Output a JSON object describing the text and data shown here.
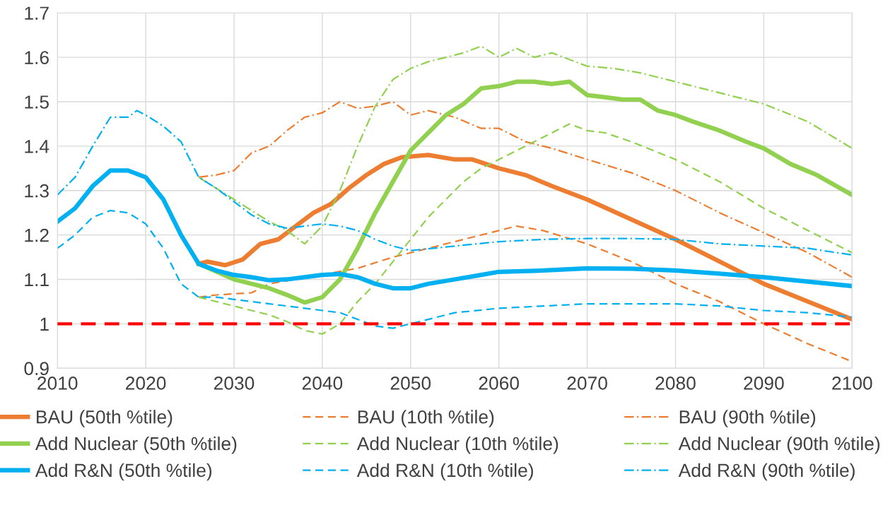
{
  "chart_data": {
    "type": "line",
    "xlim": [
      2010,
      2100
    ],
    "xticks": [
      2010,
      2020,
      2030,
      2040,
      2050,
      2060,
      2070,
      2080,
      2090,
      2100
    ],
    "ylim": [
      0.9,
      1.7
    ],
    "yticks": [
      0.9,
      1,
      1.1,
      1.2,
      1.3,
      1.4,
      1.5,
      1.6,
      1.7
    ],
    "grid": true,
    "legend": "bottom",
    "ref_lines": [
      {
        "axis": "y",
        "value": 1,
        "color": "#ff0000",
        "line_style": "dashed"
      }
    ],
    "series": [
      {
        "name": "BAU (50th %tile)",
        "color": "#ed7d31",
        "line_style": "solid",
        "x": [
          2026,
          2027,
          2029,
          2031,
          2033,
          2035,
          2037,
          2039,
          2041,
          2043,
          2045,
          2047,
          2049,
          2052,
          2055,
          2057,
          2060,
          2063,
          2066,
          2070,
          2075,
          2080,
          2085,
          2090,
          2095,
          2100
        ],
        "values": [
          1.135,
          1.14,
          1.132,
          1.145,
          1.18,
          1.19,
          1.22,
          1.25,
          1.27,
          1.305,
          1.335,
          1.36,
          1.375,
          1.38,
          1.37,
          1.37,
          1.35,
          1.335,
          1.31,
          1.28,
          1.235,
          1.19,
          1.14,
          1.09,
          1.05,
          1.01
        ]
      },
      {
        "name": "BAU (10th %tile)",
        "color": "#ed7d31",
        "line_style": "dashed",
        "x": [
          2026,
          2028,
          2032,
          2034,
          2044,
          2048,
          2052,
          2056,
          2060,
          2062,
          2065,
          2070,
          2075,
          2080,
          2085,
          2090,
          2095,
          2100
        ],
        "values": [
          1.06,
          1.065,
          1.07,
          1.09,
          1.125,
          1.15,
          1.17,
          1.19,
          1.21,
          1.22,
          1.21,
          1.18,
          1.14,
          1.09,
          1.05,
          1.0,
          0.955,
          0.915
        ]
      },
      {
        "name": "BAU (90th %tile)",
        "color": "#ed7d31",
        "line_style": "dashdot",
        "x": [
          2026,
          2028,
          2030,
          2032,
          2034,
          2036,
          2038,
          2040,
          2042,
          2044,
          2046,
          2048,
          2050,
          2052,
          2055,
          2058,
          2060,
          2063,
          2066,
          2070,
          2075,
          2080,
          2085,
          2090,
          2095,
          2100
        ],
        "values": [
          1.33,
          1.335,
          1.345,
          1.385,
          1.4,
          1.435,
          1.465,
          1.475,
          1.5,
          1.485,
          1.49,
          1.5,
          1.47,
          1.48,
          1.465,
          1.44,
          1.44,
          1.41,
          1.395,
          1.37,
          1.34,
          1.3,
          1.25,
          1.205,
          1.16,
          1.105
        ]
      },
      {
        "name": "Add Nuclear (50th %tile)",
        "color": "#92d050",
        "line_style": "solid",
        "x": [
          2026,
          2030,
          2034,
          2036,
          2038,
          2040,
          2042,
          2044,
          2046,
          2048,
          2050,
          2052,
          2054,
          2056,
          2058,
          2060,
          2062,
          2064,
          2066,
          2068,
          2070,
          2072,
          2074,
          2076,
          2078,
          2080,
          2082,
          2085,
          2088,
          2090,
          2093,
          2096,
          2100
        ],
        "values": [
          1.135,
          1.1,
          1.08,
          1.065,
          1.048,
          1.06,
          1.1,
          1.17,
          1.25,
          1.32,
          1.39,
          1.43,
          1.47,
          1.495,
          1.53,
          1.535,
          1.545,
          1.545,
          1.54,
          1.545,
          1.515,
          1.51,
          1.505,
          1.505,
          1.48,
          1.47,
          1.455,
          1.435,
          1.41,
          1.395,
          1.36,
          1.335,
          1.29
        ]
      },
      {
        "name": "Add Nuclear (10th %tile)",
        "color": "#92d050",
        "line_style": "dashed",
        "x": [
          2026,
          2030,
          2034,
          2036,
          2038,
          2040,
          2042,
          2044,
          2046,
          2048,
          2050,
          2052,
          2054,
          2056,
          2058,
          2060,
          2062,
          2064,
          2066,
          2068,
          2070,
          2072,
          2075,
          2080,
          2085,
          2090,
          2095,
          2100
        ],
        "values": [
          1.06,
          1.04,
          1.02,
          1.005,
          0.985,
          0.977,
          1.0,
          1.05,
          1.09,
          1.14,
          1.19,
          1.24,
          1.28,
          1.32,
          1.35,
          1.37,
          1.39,
          1.41,
          1.43,
          1.45,
          1.435,
          1.43,
          1.41,
          1.37,
          1.32,
          1.26,
          1.21,
          1.16
        ]
      },
      {
        "name": "Add Nuclear (90th %tile)",
        "color": "#92d050",
        "line_style": "dashdot",
        "x": [
          2026,
          2030,
          2034,
          2036,
          2038,
          2040,
          2042,
          2044,
          2046,
          2048,
          2050,
          2052,
          2054,
          2056,
          2058,
          2060,
          2062,
          2064,
          2066,
          2068,
          2070,
          2073,
          2076,
          2080,
          2085,
          2090,
          2095,
          2100
        ],
        "values": [
          1.33,
          1.28,
          1.23,
          1.21,
          1.18,
          1.22,
          1.3,
          1.4,
          1.49,
          1.55,
          1.575,
          1.59,
          1.6,
          1.61,
          1.625,
          1.6,
          1.62,
          1.6,
          1.61,
          1.595,
          1.58,
          1.575,
          1.565,
          1.545,
          1.52,
          1.495,
          1.455,
          1.395
        ]
      },
      {
        "name": "Add R&N (50th %tile)",
        "color": "#00b0f0",
        "line_style": "solid",
        "x": [
          2010,
          2012,
          2014,
          2016,
          2018,
          2020,
          2022,
          2024,
          2026,
          2028,
          2030,
          2032,
          2034,
          2036,
          2038,
          2040,
          2042,
          2044,
          2046,
          2048,
          2050,
          2052,
          2055,
          2058,
          2060,
          2065,
          2070,
          2075,
          2080,
          2085,
          2090,
          2095,
          2100
        ],
        "values": [
          1.23,
          1.26,
          1.31,
          1.345,
          1.345,
          1.33,
          1.28,
          1.2,
          1.135,
          1.12,
          1.11,
          1.105,
          1.098,
          1.1,
          1.105,
          1.11,
          1.112,
          1.105,
          1.09,
          1.08,
          1.08,
          1.09,
          1.1,
          1.11,
          1.117,
          1.12,
          1.125,
          1.124,
          1.12,
          1.113,
          1.105,
          1.095,
          1.085
        ]
      },
      {
        "name": "Add R&N (10th %tile)",
        "color": "#00b0f0",
        "line_style": "dashed",
        "x": [
          2010,
          2012,
          2014,
          2016,
          2018,
          2020,
          2022,
          2024,
          2026,
          2028,
          2030,
          2034,
          2038,
          2040,
          2042,
          2044,
          2046,
          2048,
          2050,
          2052,
          2055,
          2060,
          2065,
          2070,
          2075,
          2080,
          2085,
          2090,
          2095,
          2100
        ],
        "values": [
          1.17,
          1.2,
          1.24,
          1.255,
          1.25,
          1.225,
          1.17,
          1.09,
          1.06,
          1.06,
          1.055,
          1.045,
          1.035,
          1.03,
          1.025,
          1.01,
          0.995,
          0.99,
          1.0,
          1.01,
          1.025,
          1.035,
          1.04,
          1.045,
          1.045,
          1.045,
          1.04,
          1.03,
          1.025,
          1.015
        ]
      },
      {
        "name": "Add R&N (90th %tile)",
        "color": "#00b0f0",
        "line_style": "dashdot",
        "x": [
          2010,
          2012,
          2014,
          2016,
          2018,
          2019,
          2020,
          2022,
          2024,
          2026,
          2028,
          2030,
          2032,
          2034,
          2036,
          2038,
          2040,
          2042,
          2044,
          2046,
          2048,
          2050,
          2055,
          2060,
          2065,
          2070,
          2075,
          2080,
          2085,
          2090,
          2095,
          2100
        ],
        "values": [
          1.29,
          1.33,
          1.4,
          1.465,
          1.465,
          1.48,
          1.47,
          1.445,
          1.41,
          1.33,
          1.305,
          1.275,
          1.245,
          1.225,
          1.215,
          1.22,
          1.225,
          1.22,
          1.21,
          1.19,
          1.175,
          1.165,
          1.175,
          1.185,
          1.19,
          1.192,
          1.192,
          1.19,
          1.18,
          1.175,
          1.17,
          1.155
        ]
      }
    ]
  }
}
